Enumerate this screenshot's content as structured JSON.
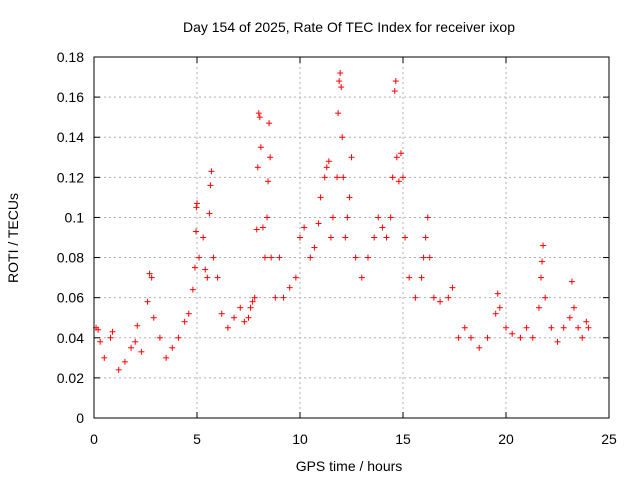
{
  "colors": {
    "series": "#ff0000",
    "grid": "#b0b0b0",
    "frame": "#000000",
    "background": "#ffffff"
  },
  "chart_data": {
    "type": "scatter",
    "title": "Day 154 of 2025, Rate Of TEC Index for receiver ixop",
    "xlabel": "GPS time / hours",
    "ylabel": "ROTI / TECUs",
    "xlim": [
      0,
      25
    ],
    "ylim": [
      0,
      0.18
    ],
    "xticks": [
      0,
      5,
      10,
      15,
      20,
      25
    ],
    "yticks": [
      0,
      0.02,
      0.04,
      0.06,
      0.08,
      0.1,
      0.12,
      0.14,
      0.16,
      0.18
    ],
    "xtick_labels": [
      "0",
      "5",
      "10",
      "15",
      "20",
      "25"
    ],
    "ytick_labels": [
      "0",
      "0.02",
      "0.04",
      "0.06",
      "0.08",
      "0.1",
      "0.12",
      "0.14",
      "0.16",
      "0.18"
    ],
    "grid": true,
    "marker": "plus",
    "series": [
      {
        "points": [
          [
            0.1,
            0.045
          ],
          [
            0.2,
            0.044
          ],
          [
            0.3,
            0.038
          ],
          [
            0.5,
            0.03
          ],
          [
            0.8,
            0.04
          ],
          [
            0.9,
            0.043
          ],
          [
            1.2,
            0.024
          ],
          [
            1.5,
            0.028
          ],
          [
            1.8,
            0.035
          ],
          [
            2.0,
            0.038
          ],
          [
            2.1,
            0.046
          ],
          [
            2.3,
            0.033
          ],
          [
            2.6,
            0.058
          ],
          [
            2.7,
            0.072
          ],
          [
            2.8,
            0.07
          ],
          [
            2.9,
            0.05
          ],
          [
            3.2,
            0.04
          ],
          [
            3.5,
            0.03
          ],
          [
            3.8,
            0.035
          ],
          [
            4.1,
            0.04
          ],
          [
            4.4,
            0.048
          ],
          [
            4.6,
            0.052
          ],
          [
            4.8,
            0.064
          ],
          [
            4.9,
            0.075
          ],
          [
            4.95,
            0.093
          ],
          [
            4.97,
            0.105
          ],
          [
            5.0,
            0.107
          ],
          [
            5.1,
            0.08
          ],
          [
            5.3,
            0.09
          ],
          [
            5.4,
            0.074
          ],
          [
            5.5,
            0.07
          ],
          [
            5.6,
            0.102
          ],
          [
            5.65,
            0.116
          ],
          [
            5.7,
            0.123
          ],
          [
            5.8,
            0.08
          ],
          [
            6.0,
            0.07
          ],
          [
            6.2,
            0.052
          ],
          [
            6.5,
            0.045
          ],
          [
            6.8,
            0.05
          ],
          [
            7.1,
            0.055
          ],
          [
            7.3,
            0.048
          ],
          [
            7.5,
            0.05
          ],
          [
            7.6,
            0.055
          ],
          [
            7.7,
            0.058
          ],
          [
            7.8,
            0.06
          ],
          [
            7.9,
            0.094
          ],
          [
            7.95,
            0.125
          ],
          [
            8.0,
            0.152
          ],
          [
            8.05,
            0.15
          ],
          [
            8.1,
            0.135
          ],
          [
            8.2,
            0.095
          ],
          [
            8.3,
            0.08
          ],
          [
            8.4,
            0.1
          ],
          [
            8.45,
            0.118
          ],
          [
            8.5,
            0.147
          ],
          [
            8.55,
            0.13
          ],
          [
            8.6,
            0.08
          ],
          [
            8.8,
            0.06
          ],
          [
            9.0,
            0.08
          ],
          [
            9.2,
            0.06
          ],
          [
            9.5,
            0.065
          ],
          [
            9.8,
            0.07
          ],
          [
            10.0,
            0.09
          ],
          [
            10.2,
            0.095
          ],
          [
            10.5,
            0.08
          ],
          [
            10.7,
            0.085
          ],
          [
            10.9,
            0.097
          ],
          [
            11.0,
            0.11
          ],
          [
            11.2,
            0.12
          ],
          [
            11.3,
            0.125
          ],
          [
            11.4,
            0.128
          ],
          [
            11.5,
            0.09
          ],
          [
            11.6,
            0.1
          ],
          [
            11.8,
            0.12
          ],
          [
            11.85,
            0.152
          ],
          [
            11.9,
            0.168
          ],
          [
            11.95,
            0.172
          ],
          [
            12.0,
            0.165
          ],
          [
            12.05,
            0.14
          ],
          [
            12.1,
            0.12
          ],
          [
            12.2,
            0.09
          ],
          [
            12.3,
            0.1
          ],
          [
            12.4,
            0.11
          ],
          [
            12.5,
            0.13
          ],
          [
            12.7,
            0.08
          ],
          [
            13.0,
            0.07
          ],
          [
            13.3,
            0.08
          ],
          [
            13.6,
            0.09
          ],
          [
            13.8,
            0.1
          ],
          [
            14.0,
            0.095
          ],
          [
            14.2,
            0.09
          ],
          [
            14.4,
            0.1
          ],
          [
            14.5,
            0.12
          ],
          [
            14.6,
            0.163
          ],
          [
            14.65,
            0.168
          ],
          [
            14.7,
            0.13
          ],
          [
            14.8,
            0.118
          ],
          [
            14.9,
            0.132
          ],
          [
            15.0,
            0.12
          ],
          [
            15.1,
            0.09
          ],
          [
            15.3,
            0.07
          ],
          [
            15.6,
            0.06
          ],
          [
            15.9,
            0.07
          ],
          [
            16.0,
            0.08
          ],
          [
            16.1,
            0.09
          ],
          [
            16.2,
            0.1
          ],
          [
            16.3,
            0.08
          ],
          [
            16.5,
            0.06
          ],
          [
            16.8,
            0.058
          ],
          [
            17.2,
            0.06
          ],
          [
            17.4,
            0.065
          ],
          [
            17.7,
            0.04
          ],
          [
            18.0,
            0.045
          ],
          [
            18.3,
            0.04
          ],
          [
            18.7,
            0.035
          ],
          [
            19.1,
            0.04
          ],
          [
            19.5,
            0.052
          ],
          [
            19.6,
            0.062
          ],
          [
            19.7,
            0.055
          ],
          [
            20.0,
            0.045
          ],
          [
            20.3,
            0.042
          ],
          [
            20.7,
            0.04
          ],
          [
            21.0,
            0.045
          ],
          [
            21.3,
            0.04
          ],
          [
            21.6,
            0.055
          ],
          [
            21.7,
            0.07
          ],
          [
            21.75,
            0.078
          ],
          [
            21.8,
            0.086
          ],
          [
            21.9,
            0.06
          ],
          [
            22.2,
            0.045
          ],
          [
            22.5,
            0.038
          ],
          [
            22.8,
            0.045
          ],
          [
            23.1,
            0.05
          ],
          [
            23.2,
            0.068
          ],
          [
            23.3,
            0.055
          ],
          [
            23.5,
            0.045
          ],
          [
            23.7,
            0.04
          ],
          [
            23.9,
            0.048
          ],
          [
            24.0,
            0.045
          ]
        ]
      }
    ]
  }
}
